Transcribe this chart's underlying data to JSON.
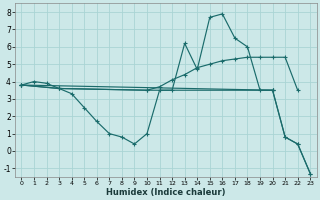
{
  "xlabel": "Humidex (Indice chaleur)",
  "xlim": [
    -0.5,
    23.5
  ],
  "ylim": [
    -1.5,
    8.5
  ],
  "xticks": [
    0,
    1,
    2,
    3,
    4,
    5,
    6,
    7,
    8,
    9,
    10,
    11,
    12,
    13,
    14,
    15,
    16,
    17,
    18,
    19,
    20,
    21,
    22,
    23
  ],
  "yticks": [
    -1,
    0,
    1,
    2,
    3,
    4,
    5,
    6,
    7,
    8
  ],
  "bg_color": "#cce8e8",
  "line_color": "#1a6b6b",
  "grid_color": "#aad4d4",
  "lines": [
    {
      "x": [
        0,
        1,
        2,
        3,
        4,
        5,
        6,
        7,
        8,
        9,
        10,
        11,
        12,
        13,
        14,
        15,
        16,
        17,
        18,
        19,
        20,
        21,
        22,
        23
      ],
      "y": [
        3.8,
        4.0,
        3.9,
        3.6,
        3.3,
        2.5,
        1.7,
        1.0,
        0.8,
        0.4,
        1.0,
        3.5,
        3.5,
        6.2,
        4.7,
        7.7,
        7.9,
        6.5,
        6.0,
        3.5,
        3.5,
        0.8,
        0.4,
        -1.3
      ]
    },
    {
      "x": [
        0,
        3,
        10,
        11,
        12,
        13,
        14,
        15,
        16,
        17,
        18,
        19,
        20,
        21,
        22
      ],
      "y": [
        3.8,
        3.6,
        3.5,
        3.7,
        4.1,
        4.4,
        4.8,
        5.0,
        5.2,
        5.3,
        5.4,
        5.4,
        5.4,
        5.4,
        3.5
      ]
    },
    {
      "x": [
        0,
        3,
        10,
        20
      ],
      "y": [
        3.8,
        3.6,
        3.5,
        3.5
      ]
    },
    {
      "x": [
        0,
        20,
        21,
        22,
        23
      ],
      "y": [
        3.8,
        3.5,
        0.8,
        0.4,
        -1.3
      ]
    }
  ]
}
